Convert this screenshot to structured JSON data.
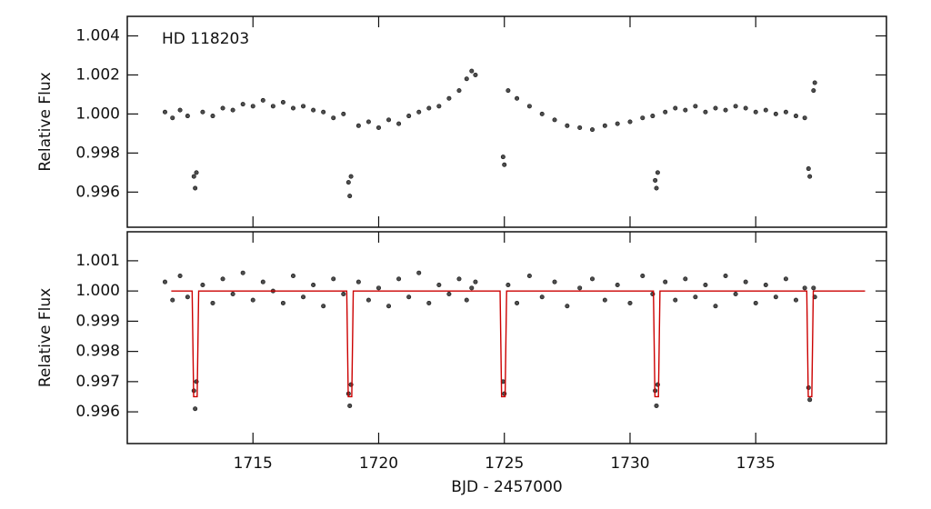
{
  "chart_data": [
    {
      "type": "scatter",
      "ylabel": "Relative Flux",
      "annotation": "HD 118203",
      "xlim": [
        1710,
        1740.2
      ],
      "xticks": [
        1715,
        1720,
        1725,
        1730,
        1735
      ],
      "ylim": [
        0.9942,
        1.005
      ],
      "yticks": [
        0.996,
        0.998,
        {
          "value": 1.0,
          "label": "1.000"
        },
        1.002,
        1.004
      ],
      "series": [
        {
          "type": "scatter",
          "color": "#111111",
          "x": [
            1711.5,
            1711.8,
            1712.1,
            1712.4,
            1712.65,
            1712.7,
            1712.75,
            1713.0,
            1713.4,
            1713.8,
            1714.2,
            1714.6,
            1715.0,
            1715.4,
            1715.8,
            1716.2,
            1716.6,
            1717.0,
            1717.4,
            1717.8,
            1718.2,
            1718.6,
            1718.8,
            1718.85,
            1718.9,
            1719.2,
            1719.6,
            1720.0,
            1720.4,
            1720.8,
            1721.2,
            1721.6,
            1722.0,
            1722.4,
            1722.8,
            1723.2,
            1723.5,
            1723.7,
            1723.85,
            1724.95,
            1725.0,
            1725.15,
            1725.5,
            1726.0,
            1726.5,
            1727.0,
            1727.5,
            1728.0,
            1728.5,
            1729.0,
            1729.5,
            1730.0,
            1730.5,
            1730.9,
            1731.0,
            1731.05,
            1731.1,
            1731.4,
            1731.8,
            1732.2,
            1732.6,
            1733.0,
            1733.4,
            1733.8,
            1734.2,
            1734.6,
            1735.0,
            1735.4,
            1735.8,
            1736.2,
            1736.6,
            1736.95,
            1737.1,
            1737.15,
            1737.3,
            1737.35
          ],
          "values": [
            1.0001,
            0.9998,
            1.0002,
            0.9999,
            0.9968,
            0.9962,
            0.997,
            1.0001,
            0.9999,
            1.0003,
            1.0002,
            1.0005,
            1.0004,
            1.0007,
            1.0004,
            1.0006,
            1.0003,
            1.0004,
            1.0002,
            1.0001,
            0.9998,
            1.0,
            0.9965,
            0.9958,
            0.9968,
            0.9994,
            0.9996,
            0.9993,
            0.9997,
            0.9995,
            0.9999,
            1.0001,
            1.0003,
            1.0004,
            1.0008,
            1.0012,
            1.0018,
            1.0022,
            1.002,
            0.9978,
            0.9974,
            1.0012,
            1.0008,
            1.0004,
            1.0,
            0.9997,
            0.9994,
            0.9993,
            0.9992,
            0.9994,
            0.9995,
            0.9996,
            0.9998,
            0.9999,
            0.9966,
            0.9962,
            0.997,
            1.0001,
            1.0003,
            1.0002,
            1.0004,
            1.0001,
            1.0003,
            1.0002,
            1.0004,
            1.0003,
            1.0001,
            1.0002,
            1.0,
            1.0001,
            0.9999,
            0.9998,
            0.9972,
            0.9968,
            1.0012,
            1.0016
          ]
        }
      ]
    },
    {
      "type": "scatter",
      "ylabel": "Relative Flux",
      "xlabel": "BJD - 2457000",
      "xlim": [
        1710,
        1740.2
      ],
      "xticks": [
        1715,
        1720,
        1725,
        1730,
        1735
      ],
      "ylim": [
        0.99495,
        1.00196
      ],
      "yticks": [
        0.996,
        0.997,
        0.998,
        0.999,
        {
          "value": 1.0,
          "label": "1.000"
        },
        1.001
      ],
      "series": [
        {
          "type": "scatter",
          "color": "#111111",
          "x": [
            1711.5,
            1711.8,
            1712.1,
            1712.4,
            1712.65,
            1712.7,
            1712.75,
            1713.0,
            1713.4,
            1713.8,
            1714.2,
            1714.6,
            1715.0,
            1715.4,
            1715.8,
            1716.2,
            1716.6,
            1717.0,
            1717.4,
            1717.8,
            1718.2,
            1718.6,
            1718.8,
            1718.85,
            1718.9,
            1719.2,
            1719.6,
            1720.0,
            1720.4,
            1720.8,
            1721.2,
            1721.6,
            1722.0,
            1722.4,
            1722.8,
            1723.2,
            1723.5,
            1723.7,
            1723.85,
            1724.95,
            1725.0,
            1725.15,
            1725.5,
            1726.0,
            1726.5,
            1727.0,
            1727.5,
            1728.0,
            1728.5,
            1729.0,
            1729.5,
            1730.0,
            1730.5,
            1730.9,
            1731.0,
            1731.05,
            1731.1,
            1731.4,
            1731.8,
            1732.2,
            1732.6,
            1733.0,
            1733.4,
            1733.8,
            1734.2,
            1734.6,
            1735.0,
            1735.4,
            1735.8,
            1736.2,
            1736.6,
            1736.95,
            1737.1,
            1737.15,
            1737.3,
            1737.35
          ],
          "values": [
            1.0003,
            0.9997,
            1.0005,
            0.9998,
            0.9967,
            0.9961,
            0.997,
            1.0002,
            0.9996,
            1.0004,
            0.9999,
            1.0006,
            0.9997,
            1.0003,
            1.0,
            0.9996,
            1.0005,
            0.9998,
            1.0002,
            0.9995,
            1.0004,
            0.9999,
            0.9966,
            0.9962,
            0.9969,
            1.0003,
            0.9997,
            1.0001,
            0.9995,
            1.0004,
            0.9998,
            1.0006,
            0.9996,
            1.0002,
            0.9999,
            1.0004,
            0.9997,
            1.0001,
            1.0003,
            0.997,
            0.9966,
            1.0002,
            0.9996,
            1.0005,
            0.9998,
            1.0003,
            0.9995,
            1.0001,
            1.0004,
            0.9997,
            1.0002,
            0.9996,
            1.0005,
            0.9999,
            0.9967,
            0.9962,
            0.9969,
            1.0003,
            0.9997,
            1.0004,
            0.9998,
            1.0002,
            0.9995,
            1.0005,
            0.9999,
            1.0003,
            0.9996,
            1.0002,
            0.9998,
            1.0004,
            0.9997,
            1.0001,
            0.9968,
            0.9964,
            1.0001,
            0.9998
          ]
        },
        {
          "type": "line",
          "color": "#cc0000",
          "x": [
            1711.75,
            1712.58,
            1712.64,
            1712.78,
            1712.84,
            1718.73,
            1718.79,
            1718.93,
            1718.99,
            1724.83,
            1724.89,
            1725.03,
            1725.09,
            1730.93,
            1730.99,
            1731.13,
            1731.19,
            1737.03,
            1737.09,
            1737.23,
            1737.29,
            1739.35
          ],
          "values": [
            1.0,
            1.0,
            0.9965,
            0.9965,
            1.0,
            1.0,
            0.9965,
            0.9965,
            1.0,
            1.0,
            0.9965,
            0.9965,
            1.0,
            1.0,
            0.9965,
            0.9965,
            1.0,
            1.0,
            0.9965,
            0.9965,
            1.0,
            1.0
          ]
        }
      ]
    }
  ]
}
